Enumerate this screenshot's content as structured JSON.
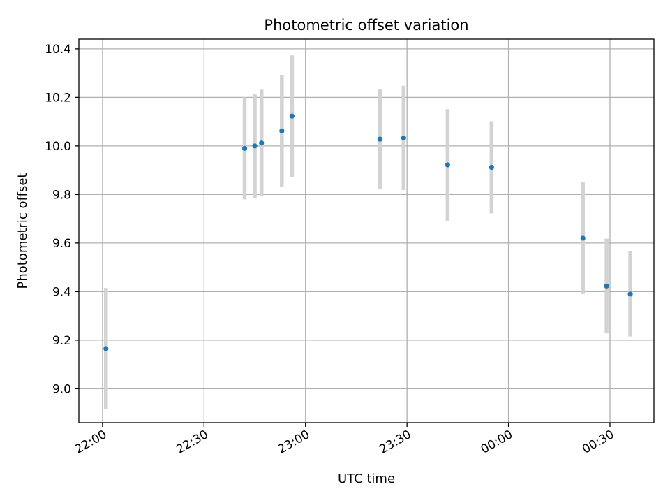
{
  "chart_data": {
    "type": "scatter",
    "title": "Photometric offset variation",
    "xlabel": "UTC time",
    "ylabel": "Photometric offset",
    "grid": true,
    "x_ticks": [
      "22:00",
      "22:30",
      "23:00",
      "23:30",
      "00:00",
      "00:30"
    ],
    "y_ticks": [
      "9.0",
      "9.2",
      "9.4",
      "9.6",
      "9.8",
      "10.0",
      "10.2",
      "10.4"
    ],
    "xlim": [
      "21:53",
      "00:43"
    ],
    "ylim": [
      8.86,
      10.44
    ],
    "colors": {
      "points": "#1f77b4",
      "errorbars": "#d3d3d3",
      "grid": "#b0b0b0"
    },
    "series": [
      {
        "x": [
          "22:01",
          "22:42",
          "22:45",
          "22:47",
          "22:53",
          "22:56",
          "23:22",
          "23:29",
          "23:42",
          "23:55",
          "00:22",
          "00:29",
          "00:36"
        ],
        "y": [
          9.165,
          9.99,
          10.0,
          10.012,
          10.062,
          10.123,
          10.028,
          10.033,
          9.922,
          9.912,
          9.62,
          9.423,
          9.39
        ],
        "err": [
          0.25,
          0.21,
          0.215,
          0.22,
          0.23,
          0.25,
          0.205,
          0.215,
          0.23,
          0.19,
          0.23,
          0.195,
          0.175
        ]
      }
    ]
  }
}
